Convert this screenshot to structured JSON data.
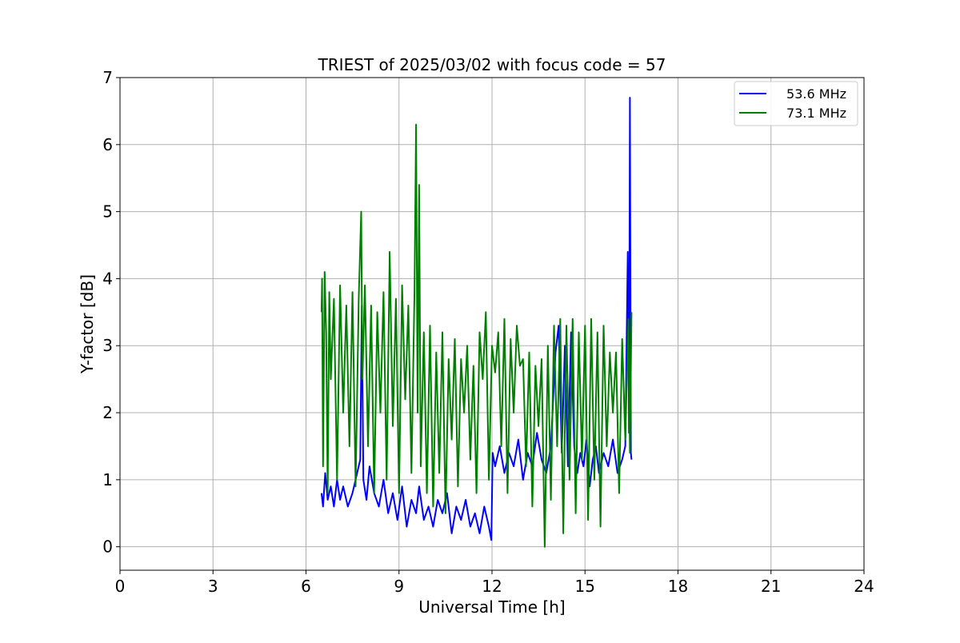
{
  "chart_data": {
    "type": "line",
    "title": "TRIEST of 2025/03/02 with focus code = 57",
    "xlabel": "Universal Time [h]",
    "ylabel": "Y-factor [dB]",
    "xlim": [
      0,
      24
    ],
    "ylim": [
      -0.35,
      7
    ],
    "xticks": [
      0,
      3,
      6,
      9,
      12,
      15,
      18,
      21,
      24
    ],
    "yticks": [
      0,
      1,
      2,
      3,
      4,
      5,
      6,
      7
    ],
    "grid": true,
    "legend_position": "top-right",
    "series": [
      {
        "name": "53.6 MHz",
        "color": "#0000ff",
        "x": [
          6.5,
          6.55,
          6.62,
          6.7,
          6.8,
          6.9,
          7.0,
          7.1,
          7.2,
          7.35,
          7.5,
          7.65,
          7.75,
          7.8,
          7.85,
          7.95,
          8.05,
          8.2,
          8.35,
          8.5,
          8.65,
          8.8,
          8.95,
          9.1,
          9.25,
          9.4,
          9.55,
          9.65,
          9.8,
          9.95,
          10.1,
          10.25,
          10.4,
          10.55,
          10.7,
          10.85,
          11.0,
          11.15,
          11.3,
          11.45,
          11.6,
          11.75,
          11.9,
          11.98,
          12.02,
          12.1,
          12.25,
          12.4,
          12.55,
          12.7,
          12.85,
          13.0,
          13.15,
          13.3,
          13.45,
          13.6,
          13.75,
          13.9,
          14.05,
          14.15,
          14.25,
          14.35,
          14.45,
          14.55,
          14.65,
          14.75,
          14.85,
          14.95,
          15.05,
          15.15,
          15.25,
          15.35,
          15.45,
          15.6,
          15.75,
          15.9,
          16.05,
          16.2,
          16.3,
          16.38,
          16.42,
          16.45,
          16.48,
          16.5
        ],
        "values": [
          0.8,
          0.6,
          1.1,
          0.7,
          0.9,
          0.6,
          1.0,
          0.7,
          0.9,
          0.6,
          0.8,
          1.1,
          1.3,
          3.6,
          1.0,
          0.7,
          1.2,
          0.8,
          0.6,
          1.0,
          0.5,
          0.8,
          0.4,
          0.9,
          0.3,
          0.7,
          0.5,
          0.9,
          0.4,
          0.6,
          0.3,
          0.7,
          0.5,
          0.8,
          0.2,
          0.6,
          0.4,
          0.7,
          0.3,
          0.5,
          0.2,
          0.6,
          0.3,
          0.1,
          1.4,
          1.2,
          1.5,
          1.1,
          1.4,
          1.2,
          1.6,
          1.0,
          1.4,
          1.2,
          1.7,
          1.3,
          1.1,
          1.5,
          2.9,
          3.3,
          1.4,
          3.0,
          1.2,
          3.2,
          1.5,
          1.1,
          1.4,
          1.2,
          1.6,
          0.9,
          1.3,
          1.5,
          1.1,
          1.4,
          1.2,
          1.6,
          1.1,
          1.3,
          1.5,
          4.4,
          1.7,
          6.7,
          1.4,
          1.3
        ]
      },
      {
        "name": "73.1 MHz",
        "color": "#008000",
        "x": [
          6.5,
          6.52,
          6.55,
          6.6,
          6.65,
          6.7,
          6.75,
          6.8,
          6.9,
          7.0,
          7.1,
          7.2,
          7.3,
          7.4,
          7.5,
          7.6,
          7.7,
          7.78,
          7.82,
          7.9,
          8.0,
          8.1,
          8.2,
          8.3,
          8.4,
          8.5,
          8.6,
          8.7,
          8.8,
          8.9,
          9.0,
          9.1,
          9.2,
          9.3,
          9.4,
          9.5,
          9.55,
          9.6,
          9.65,
          9.7,
          9.8,
          9.9,
          10.0,
          10.1,
          10.2,
          10.3,
          10.4,
          10.5,
          10.6,
          10.7,
          10.8,
          10.9,
          11.0,
          11.1,
          11.2,
          11.3,
          11.4,
          11.5,
          11.6,
          11.7,
          11.8,
          11.9,
          12.0,
          12.1,
          12.2,
          12.3,
          12.4,
          12.5,
          12.6,
          12.7,
          12.8,
          12.9,
          13.0,
          13.1,
          13.2,
          13.3,
          13.4,
          13.5,
          13.6,
          13.7,
          13.8,
          13.9,
          14.0,
          14.1,
          14.2,
          14.3,
          14.4,
          14.5,
          14.6,
          14.7,
          14.8,
          14.9,
          15.0,
          15.1,
          15.2,
          15.3,
          15.4,
          15.5,
          15.6,
          15.7,
          15.8,
          15.9,
          16.0,
          16.1,
          16.2,
          16.3,
          16.4,
          16.45,
          16.5
        ],
        "values": [
          3.5,
          4.0,
          1.2,
          4.1,
          3.2,
          0.8,
          3.8,
          2.5,
          3.7,
          1.0,
          3.9,
          2.0,
          3.6,
          1.5,
          3.8,
          0.9,
          3.7,
          5.0,
          2.5,
          3.9,
          1.5,
          3.6,
          0.8,
          3.5,
          2.0,
          3.8,
          1.0,
          4.4,
          1.8,
          3.7,
          0.8,
          3.9,
          2.2,
          3.6,
          1.1,
          3.8,
          6.3,
          2.0,
          5.4,
          1.2,
          3.2,
          0.8,
          3.3,
          0.6,
          2.9,
          1.1,
          3.2,
          0.5,
          2.8,
          1.6,
          3.1,
          0.9,
          2.8,
          2.0,
          3.0,
          1.3,
          2.7,
          0.8,
          3.2,
          2.5,
          3.5,
          1.0,
          3.0,
          2.6,
          3.2,
          1.5,
          3.4,
          0.8,
          3.1,
          2.0,
          3.3,
          2.7,
          2.8,
          1.2,
          2.9,
          0.6,
          2.7,
          1.8,
          2.8,
          0.0,
          3.0,
          0.7,
          3.3,
          1.5,
          3.4,
          0.2,
          3.3,
          1.0,
          3.4,
          0.5,
          3.2,
          1.3,
          3.3,
          0.4,
          3.4,
          1.0,
          3.2,
          0.3,
          3.3,
          1.5,
          2.9,
          2.0,
          2.9,
          0.8,
          3.1,
          1.6,
          3.4,
          1.4,
          3.5
        ]
      }
    ]
  }
}
